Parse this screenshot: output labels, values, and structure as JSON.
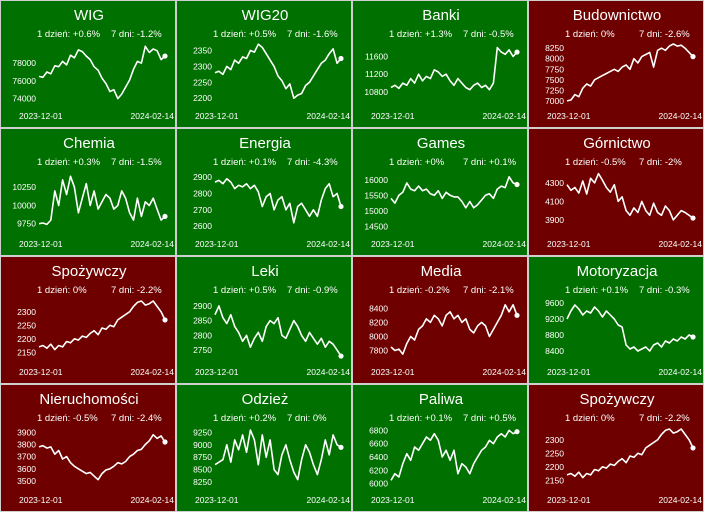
{
  "colors": {
    "up": "#007000",
    "down": "#6e0000",
    "text": "#ffffff",
    "border": "#cfcfcf"
  },
  "chart_data": [
    {
      "type": "line",
      "title": "WIG",
      "day_change": "1 dzień: +0.6%",
      "week_change": "7 dni: -1.2%",
      "date_start": "2023-12-01",
      "date_end": "2024-02-14",
      "trend": "up",
      "yticks": [
        74000,
        76000,
        78000
      ],
      "ylim": [
        73500,
        80500
      ],
      "values": [
        76500,
        76400,
        77000,
        76800,
        77700,
        77600,
        78200,
        77800,
        78900,
        78600,
        79500,
        79300,
        78800,
        78400,
        77600,
        77200,
        76300,
        75700,
        74800,
        75000,
        74000,
        74500,
        75300,
        76100,
        77300,
        78200,
        78000,
        79900,
        79200,
        79600,
        79400,
        78400,
        78800
      ]
    },
    {
      "type": "line",
      "title": "WIG20",
      "day_change": "1 dzień: +0.5%",
      "week_change": "7 dni: -1.6%",
      "date_start": "2023-12-01",
      "date_end": "2024-02-14",
      "trend": "up",
      "yticks": [
        2200,
        2250,
        2300,
        2350
      ],
      "ylim": [
        2185,
        2380
      ],
      "values": [
        2280,
        2285,
        2275,
        2300,
        2290,
        2320,
        2310,
        2330,
        2325,
        2350,
        2345,
        2370,
        2360,
        2340,
        2320,
        2300,
        2270,
        2255,
        2230,
        2245,
        2200,
        2210,
        2215,
        2240,
        2250,
        2270,
        2290,
        2310,
        2320,
        2340,
        2355,
        2310,
        2325
      ]
    },
    {
      "type": "line",
      "title": "Banki",
      "day_change": "1 dzień: +1.3%",
      "week_change": "7 dni: -0.5%",
      "date_start": "2023-12-01",
      "date_end": "2024-02-14",
      "trend": "up",
      "yticks": [
        10800,
        11200,
        11600
      ],
      "ylim": [
        10550,
        11950
      ],
      "values": [
        10900,
        10950,
        10880,
        11000,
        10950,
        11100,
        11000,
        11200,
        11050,
        11150,
        11100,
        11300,
        11250,
        11150,
        11200,
        11050,
        10950,
        11100,
        11000,
        10900,
        10850,
        10950,
        11000,
        10900,
        10950,
        10850,
        11000,
        11800,
        11700,
        11650,
        11750,
        11600,
        11700
      ]
    },
    {
      "type": "line",
      "title": "Budownictwo",
      "day_change": "1 dzień: 0%",
      "week_change": "7 dni: -2.6%",
      "date_start": "2023-12-01",
      "date_end": "2024-02-14",
      "trend": "down",
      "yticks": [
        7000,
        7250,
        7500,
        7750,
        8000,
        8250
      ],
      "ylim": [
        6950,
        8420
      ],
      "values": [
        7000,
        7020,
        7150,
        7100,
        7300,
        7400,
        7350,
        7500,
        7550,
        7600,
        7650,
        7700,
        7750,
        7700,
        7800,
        7850,
        7750,
        8000,
        7900,
        8050,
        8100,
        8150,
        7800,
        8200,
        8250,
        8200,
        8300,
        8350,
        8300,
        8320,
        8250,
        8150,
        8050
      ]
    },
    {
      "type": "line",
      "title": "Chemia",
      "day_change": "1 dzień: +0.3%",
      "week_change": "7 dni: -1.5%",
      "date_start": "2023-12-01",
      "date_end": "2024-02-14",
      "trend": "up",
      "yticks": [
        9750,
        10000,
        10250
      ],
      "ylim": [
        9650,
        10500
      ],
      "values": [
        9750,
        9760,
        9740,
        9800,
        10200,
        10000,
        10350,
        10150,
        10400,
        10250,
        9900,
        10100,
        10300,
        10000,
        10200,
        9950,
        10050,
        10150,
        10100,
        9950,
        10000,
        10200,
        10100,
        9900,
        9800,
        10100,
        9850,
        10050,
        10000,
        10100,
        9950,
        9800,
        9850
      ]
    },
    {
      "type": "line",
      "title": "Energia",
      "day_change": "1 dzień: +0.1%",
      "week_change": "7 dni: -4.3%",
      "date_start": "2023-12-01",
      "date_end": "2024-02-14",
      "trend": "up",
      "yticks": [
        2600,
        2700,
        2800,
        2900
      ],
      "ylim": [
        2570,
        2950
      ],
      "values": [
        2870,
        2880,
        2860,
        2890,
        2870,
        2830,
        2850,
        2840,
        2860,
        2830,
        2850,
        2810,
        2720,
        2780,
        2800,
        2700,
        2760,
        2780,
        2700,
        2740,
        2620,
        2720,
        2740,
        2700,
        2660,
        2700,
        2660,
        2760,
        2830,
        2860,
        2780,
        2800,
        2720
      ]
    },
    {
      "type": "line",
      "title": "Games",
      "day_change": "1 dzień: +0%",
      "week_change": "7 dni: +0.1%",
      "date_start": "2023-12-01",
      "date_end": "2024-02-14",
      "trend": "up",
      "yticks": [
        14500,
        15000,
        15500,
        16000
      ],
      "ylim": [
        14350,
        16350
      ],
      "values": [
        15400,
        15250,
        15500,
        15600,
        15900,
        15700,
        15650,
        15800,
        15650,
        15700,
        15550,
        15500,
        15650,
        15400,
        15600,
        15500,
        15450,
        15450,
        15300,
        15100,
        15300,
        15100,
        15200,
        15350,
        15500,
        15550,
        15400,
        15700,
        15800,
        15750,
        16100,
        15900,
        15850
      ]
    },
    {
      "type": "line",
      "title": "Górnictwo",
      "day_change": "1 dzień: -0.5%",
      "week_change": "7 dni: -2%",
      "date_start": "2023-12-01",
      "date_end": "2024-02-14",
      "trend": "down",
      "yticks": [
        3900,
        4100,
        4300
      ],
      "ylim": [
        3780,
        4450
      ],
      "values": [
        4280,
        4220,
        4250,
        4190,
        4320,
        4180,
        4350,
        4300,
        4400,
        4330,
        4250,
        4200,
        4280,
        4100,
        4150,
        4000,
        3950,
        4030,
        3980,
        4100,
        4000,
        3950,
        4080,
        3980,
        3950,
        4050,
        4000,
        3900,
        3950,
        4000,
        3980,
        3950,
        3920
      ]
    },
    {
      "type": "line",
      "title": "Spożywczy",
      "day_change": "1 dzień: 0%",
      "week_change": "7 dni: -2.2%",
      "date_start": "2023-12-01",
      "date_end": "2024-02-14",
      "trend": "down",
      "yticks": [
        2150,
        2200,
        2250,
        2300
      ],
      "ylim": [
        2125,
        2355
      ],
      "values": [
        2170,
        2175,
        2165,
        2180,
        2160,
        2175,
        2170,
        2190,
        2185,
        2200,
        2195,
        2210,
        2205,
        2220,
        2230,
        2215,
        2240,
        2235,
        2250,
        2245,
        2270,
        2280,
        2290,
        2300,
        2320,
        2335,
        2340,
        2325,
        2330,
        2340,
        2320,
        2300,
        2270
      ]
    },
    {
      "type": "line",
      "title": "Leki",
      "day_change": "1 dzień: +0.5%",
      "week_change": "7 dni: -0.9%",
      "date_start": "2023-12-01",
      "date_end": "2024-02-14",
      "trend": "up",
      "yticks": [
        2750,
        2800,
        2850,
        2900
      ],
      "ylim": [
        2720,
        2930
      ],
      "values": [
        2870,
        2900,
        2860,
        2840,
        2870,
        2830,
        2810,
        2780,
        2800,
        2760,
        2790,
        2810,
        2780,
        2830,
        2850,
        2840,
        2860,
        2800,
        2790,
        2820,
        2850,
        2830,
        2800,
        2780,
        2810,
        2790,
        2770,
        2790,
        2760,
        2780,
        2770,
        2750,
        2730
      ]
    },
    {
      "type": "line",
      "title": "Media",
      "day_change": "1 dzień: -0.2%",
      "week_change": "7 dni: -2.1%",
      "date_start": "2023-12-01",
      "date_end": "2024-02-14",
      "trend": "down",
      "yticks": [
        7800,
        8000,
        8200,
        8400
      ],
      "ylim": [
        7680,
        8560
      ],
      "values": [
        7850,
        7800,
        7820,
        7750,
        7900,
        8000,
        7950,
        8100,
        8150,
        8250,
        8200,
        8300,
        8250,
        8150,
        8300,
        8350,
        8250,
        8300,
        8200,
        8250,
        8100,
        8050,
        8150,
        8200,
        8150,
        8000,
        8100,
        8200,
        8300,
        8450,
        8350,
        8450,
        8300
      ]
    },
    {
      "type": "line",
      "title": "Motoryzacja",
      "day_change": "1 dzień: +0.1%",
      "week_change": "7 dni: -0.3%",
      "date_start": "2023-12-01",
      "date_end": "2024-02-14",
      "trend": "up",
      "yticks": [
        8400,
        8800,
        9200,
        9600
      ],
      "ylim": [
        8200,
        9750
      ],
      "values": [
        9200,
        9400,
        9550,
        9450,
        9300,
        9400,
        9350,
        9500,
        9400,
        9250,
        9400,
        9300,
        9200,
        9050,
        9000,
        8550,
        8450,
        8500,
        8400,
        8450,
        8500,
        8400,
        8550,
        8600,
        8500,
        8650,
        8600,
        8700,
        8650,
        8750,
        8700,
        8800,
        8750
      ]
    },
    {
      "type": "line",
      "title": "Nieruchomości",
      "day_change": "1 dzień: -0.5%",
      "week_change": "7 dni: -2.4%",
      "date_start": "2023-12-01",
      "date_end": "2024-02-14",
      "trend": "down",
      "yticks": [
        3500,
        3600,
        3700,
        3800,
        3900
      ],
      "ylim": [
        3450,
        3960
      ],
      "values": [
        3780,
        3790,
        3770,
        3780,
        3720,
        3750,
        3680,
        3700,
        3650,
        3620,
        3600,
        3580,
        3560,
        3570,
        3540,
        3510,
        3560,
        3590,
        3600,
        3620,
        3650,
        3640,
        3660,
        3700,
        3720,
        3750,
        3760,
        3800,
        3830,
        3880,
        3850,
        3870,
        3820
      ]
    },
    {
      "type": "line",
      "title": "Odzież",
      "day_change": "1 dzień: +0.2%",
      "week_change": "7 dni: 0%",
      "date_start": "2023-12-01",
      "date_end": "2024-02-14",
      "trend": "up",
      "yticks": [
        8250,
        8500,
        8750,
        9000,
        9250
      ],
      "ylim": [
        8150,
        9400
      ],
      "values": [
        8600,
        8650,
        8700,
        9000,
        8650,
        9100,
        8900,
        9200,
        8850,
        9300,
        9100,
        8600,
        9200,
        8750,
        9100,
        8500,
        8400,
        8800,
        9000,
        8700,
        8450,
        8300,
        8700,
        9000,
        8850,
        8600,
        8400,
        8700,
        9100,
        8800,
        9200,
        9000,
        8950
      ]
    },
    {
      "type": "line",
      "title": "Paliwa",
      "day_change": "1 dzień: +0.1%",
      "week_change": "7 dni: +0.5%",
      "date_start": "2023-12-01",
      "date_end": "2024-02-14",
      "trend": "up",
      "yticks": [
        6000,
        6200,
        6400,
        6600,
        6800
      ],
      "ylim": [
        5950,
        6880
      ],
      "values": [
        6050,
        6150,
        6100,
        6300,
        6450,
        6350,
        6550,
        6500,
        6600,
        6700,
        6650,
        6750,
        6650,
        6400,
        6500,
        6350,
        6500,
        6150,
        6300,
        6250,
        6150,
        6300,
        6400,
        6500,
        6550,
        6650,
        6600,
        6700,
        6750,
        6700,
        6800,
        6750,
        6780
      ]
    },
    {
      "type": "line",
      "title": "Spożywczy",
      "day_change": "1 dzień: 0%",
      "week_change": "7 dni: -2.2%",
      "date_start": "2023-12-01",
      "date_end": "2024-02-14",
      "trend": "down",
      "yticks": [
        2150,
        2200,
        2250,
        2300
      ],
      "ylim": [
        2125,
        2355
      ],
      "values": [
        2170,
        2175,
        2165,
        2180,
        2160,
        2175,
        2170,
        2190,
        2185,
        2200,
        2195,
        2210,
        2205,
        2220,
        2230,
        2215,
        2240,
        2235,
        2250,
        2245,
        2270,
        2280,
        2290,
        2300,
        2320,
        2335,
        2340,
        2325,
        2330,
        2340,
        2320,
        2300,
        2270
      ]
    }
  ]
}
